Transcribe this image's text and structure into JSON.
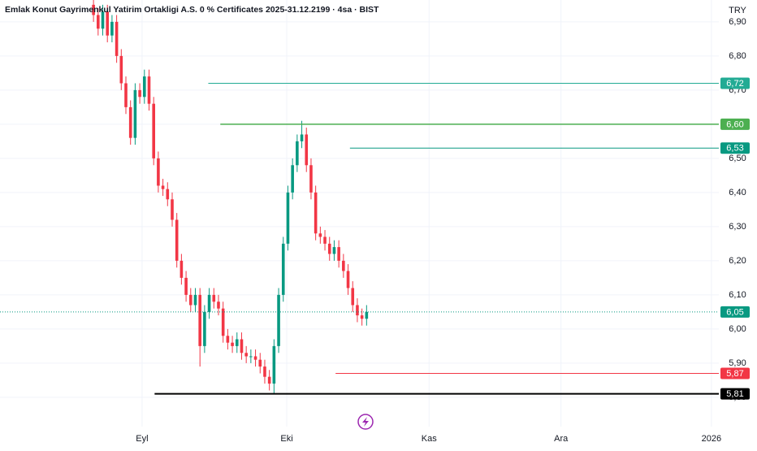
{
  "chart_data": {
    "type": "candlestick",
    "title": "Emlak Konut Gayrimenkul Yatirim Ortakligi A.S. 0 % Certificates 2025-31.12.2199 · 4sa · BIST",
    "currency": "TRY",
    "up_color": "#089981",
    "down_color": "#f23645",
    "grid": true,
    "open": [
      6.95,
      6.92,
      6.88,
      6.93,
      6.86,
      6.9,
      6.8,
      6.72,
      6.65,
      6.56,
      6.7,
      6.68,
      6.74,
      6.66,
      6.5,
      6.42,
      6.41,
      6.38,
      6.32,
      6.2,
      6.15,
      6.1,
      6.07,
      6.1,
      5.95,
      6.05,
      6.1,
      6.08,
      6.06,
      5.98,
      5.96,
      5.95,
      5.97,
      5.93,
      5.92,
      5.92,
      5.91,
      5.89,
      5.86,
      5.84,
      5.95,
      6.1,
      6.25,
      6.4,
      6.48,
      6.55,
      6.57,
      6.48,
      6.4,
      6.28,
      6.27,
      6.25,
      6.22,
      6.24,
      6.2,
      6.17,
      6.12,
      6.07,
      6.04,
      6.03
    ],
    "high": [
      6.97,
      6.94,
      6.95,
      6.95,
      6.92,
      6.92,
      6.82,
      6.74,
      6.67,
      6.72,
      6.72,
      6.76,
      6.76,
      6.68,
      6.52,
      6.44,
      6.43,
      6.4,
      6.34,
      6.22,
      6.17,
      6.12,
      6.12,
      6.12,
      6.07,
      6.12,
      6.12,
      6.1,
      6.08,
      6.0,
      5.98,
      5.99,
      5.99,
      5.95,
      5.94,
      5.94,
      5.93,
      5.91,
      5.88,
      5.97,
      6.12,
      6.27,
      6.42,
      6.5,
      6.57,
      6.61,
      6.59,
      6.5,
      6.42,
      6.3,
      6.29,
      6.27,
      6.26,
      6.26,
      6.22,
      6.19,
      6.14,
      6.09,
      6.06,
      6.07
    ],
    "low": [
      6.9,
      6.86,
      6.86,
      6.84,
      6.84,
      6.78,
      6.7,
      6.63,
      6.54,
      6.54,
      6.66,
      6.66,
      6.64,
      6.48,
      6.4,
      6.39,
      6.36,
      6.3,
      6.18,
      6.13,
      6.08,
      6.05,
      6.05,
      5.89,
      5.93,
      6.03,
      6.06,
      6.04,
      5.96,
      5.94,
      5.93,
      5.93,
      5.91,
      5.9,
      5.9,
      5.89,
      5.87,
      5.84,
      5.82,
      5.81,
      5.93,
      6.08,
      6.23,
      6.38,
      6.46,
      6.53,
      6.46,
      6.38,
      6.26,
      6.25,
      6.23,
      6.2,
      6.2,
      6.18,
      6.15,
      6.1,
      6.05,
      6.02,
      6.01,
      6.01
    ],
    "close": [
      6.92,
      6.88,
      6.93,
      6.86,
      6.9,
      6.8,
      6.72,
      6.65,
      6.56,
      6.7,
      6.68,
      6.74,
      6.66,
      6.5,
      6.42,
      6.41,
      6.38,
      6.32,
      6.2,
      6.15,
      6.1,
      6.07,
      6.1,
      5.95,
      6.05,
      6.1,
      6.08,
      6.06,
      5.98,
      5.96,
      5.95,
      5.97,
      5.93,
      5.92,
      5.92,
      5.91,
      5.89,
      5.86,
      5.84,
      5.95,
      6.1,
      6.25,
      6.4,
      6.48,
      6.55,
      6.57,
      6.48,
      6.4,
      6.28,
      6.27,
      6.25,
      6.22,
      6.24,
      6.2,
      6.17,
      6.12,
      6.07,
      6.04,
      6.03,
      6.05
    ],
    "xlim": [
      -20.2,
      135.1
    ],
    "xticks": [
      {
        "value": 10.5,
        "label": "Eyl"
      },
      {
        "value": 41.75,
        "label": "Eki"
      },
      {
        "value": 72.5,
        "label": "Kas"
      },
      {
        "value": 101,
        "label": "Ara"
      },
      {
        "value": 133.5,
        "label": "2026"
      }
    ],
    "ylim": [
      5.714,
      6.964
    ],
    "yticks": [
      {
        "value": 5.8,
        "label": "5,80"
      },
      {
        "value": 5.9,
        "label": "5,90"
      },
      {
        "value": 6.0,
        "label": "6,00"
      },
      {
        "value": 6.1,
        "label": "6,10"
      },
      {
        "value": 6.2,
        "label": "6,20"
      },
      {
        "value": 6.3,
        "label": "6,30"
      },
      {
        "value": 6.4,
        "label": "6,40"
      },
      {
        "value": 6.5,
        "label": "6,50"
      },
      {
        "value": 6.6,
        "label": "6,60"
      },
      {
        "value": 6.7,
        "label": "6,70"
      },
      {
        "value": 6.8,
        "label": "6,80"
      },
      {
        "value": 6.9,
        "label": "6,90"
      }
    ],
    "levels": [
      {
        "values": [
          6.72
        ],
        "value_labels": [
          "6,72"
        ],
        "start": 24.8,
        "color": "#22ab94",
        "width": 1
      },
      {
        "values": [
          6.6
        ],
        "value_labels": [
          "6,60"
        ],
        "start": 27.4,
        "color": "#4caf50",
        "width": 1.5
      },
      {
        "values": [
          6.53
        ],
        "value_labels": [
          "6,53"
        ],
        "start": 55.4,
        "color": "#089981",
        "width": 1
      },
      {
        "values": [
          5.87
        ],
        "value_labels": [
          "5,87"
        ],
        "start": 52.3,
        "color": "#f23645",
        "width": 1
      },
      {
        "values": [
          5.81
        ],
        "value_labels": [
          "5,81"
        ],
        "start": 13.2,
        "color": "#000000",
        "width": 2
      }
    ],
    "last_price": {
      "values": [
        6.05
      ],
      "value_labels": [
        "6,05"
      ],
      "color": "#089981"
    }
  }
}
